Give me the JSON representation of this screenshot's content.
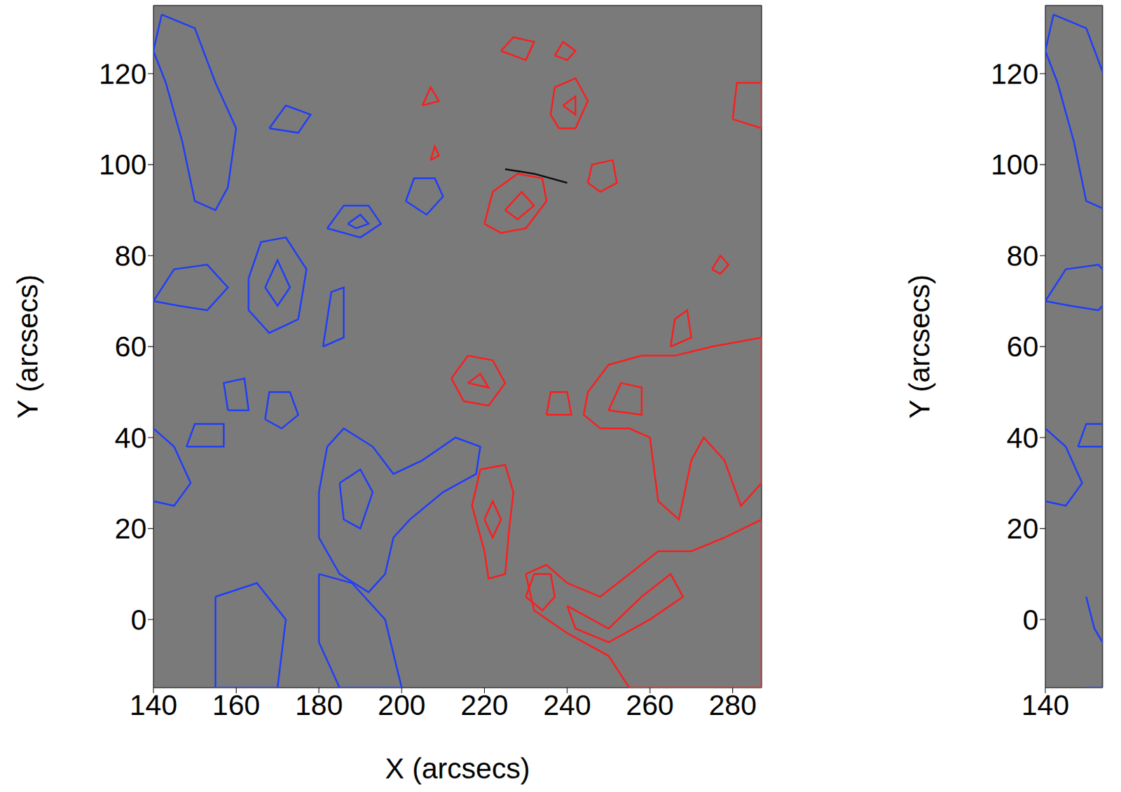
{
  "chart_data": [
    {
      "type": "contour",
      "xlabel": "X (arcsecs)",
      "ylabel": "Y (arcsecs)",
      "xlim": [
        140,
        287
      ],
      "ylim": [
        -15,
        135
      ],
      "xticks": [
        140,
        160,
        180,
        200,
        220,
        240,
        260,
        280
      ],
      "yticks": [
        0,
        20,
        40,
        60,
        80,
        100,
        120
      ],
      "series": [
        {
          "color": "#1f3dff",
          "x": [
            142,
            150,
            155,
            160,
            158,
            155,
            150,
            147,
            143,
            140,
            142
          ],
          "y": [
            133,
            130,
            118,
            108,
            95,
            90,
            92,
            105,
            118,
            125,
            133
          ]
        },
        {
          "color": "#1f3dff",
          "x": [
            168,
            172,
            178,
            175,
            168
          ],
          "y": [
            108,
            113,
            111,
            107,
            108
          ]
        },
        {
          "color": "#1f3dff",
          "x": [
            182,
            186,
            192,
            195,
            190,
            182
          ],
          "y": [
            86,
            91,
            91,
            87,
            84,
            86
          ]
        },
        {
          "color": "#1f3dff",
          "x": [
            187,
            190,
            192,
            189,
            187
          ],
          "y": [
            87,
            89,
            87,
            86,
            87
          ]
        },
        {
          "color": "#1f3dff",
          "x": [
            201,
            203,
            208,
            210,
            206,
            201
          ],
          "y": [
            92,
            97,
            97,
            93,
            89,
            92
          ]
        },
        {
          "color": "#1f3dff",
          "x": [
            140,
            145,
            153,
            158,
            153,
            146,
            140
          ],
          "y": [
            70,
            77,
            78,
            73,
            68,
            69,
            70
          ]
        },
        {
          "color": "#1f3dff",
          "x": [
            163,
            166,
            172,
            177,
            175,
            168,
            163,
            163
          ],
          "y": [
            75,
            83,
            84,
            77,
            66,
            63,
            68,
            75
          ]
        },
        {
          "color": "#1f3dff",
          "x": [
            167,
            170,
            173,
            170,
            167
          ],
          "y": [
            73,
            79,
            73,
            69,
            73
          ]
        },
        {
          "color": "#1f3dff",
          "x": [
            181,
            183,
            186,
            186,
            181
          ],
          "y": [
            60,
            72,
            73,
            62,
            60
          ]
        },
        {
          "color": "#1f3dff",
          "x": [
            158,
            157,
            162,
            163,
            158
          ],
          "y": [
            46,
            52,
            53,
            46,
            46
          ]
        },
        {
          "color": "#1f3dff",
          "x": [
            167,
            168,
            173,
            175,
            171,
            167
          ],
          "y": [
            44,
            50,
            50,
            45,
            42,
            44
          ]
        },
        {
          "color": "#1f3dff",
          "x": [
            148,
            150,
            157,
            157,
            148
          ],
          "y": [
            38,
            43,
            43,
            38,
            38
          ]
        },
        {
          "color": "#1f3dff",
          "x": [
            182,
            186,
            193,
            198,
            205,
            213,
            219,
            218,
            210,
            202,
            198,
            196,
            192,
            185,
            180,
            180,
            182
          ],
          "y": [
            38,
            42,
            38,
            32,
            35,
            40,
            38,
            32,
            28,
            22,
            18,
            10,
            6,
            10,
            18,
            28,
            38
          ]
        },
        {
          "color": "#1f3dff",
          "x": [
            185,
            190,
            193,
            190,
            186,
            185
          ],
          "y": [
            30,
            33,
            28,
            20,
            22,
            30
          ]
        },
        {
          "color": "#1f3dff",
          "x": [
            180,
            188,
            196,
            200,
            185,
            180,
            180
          ],
          "y": [
            10,
            8,
            0,
            -15,
            -15,
            -5,
            10
          ]
        },
        {
          "color": "#1f3dff",
          "x": [
            155,
            165,
            172,
            170,
            155,
            155
          ],
          "y": [
            5,
            8,
            0,
            -15,
            -15,
            5
          ]
        },
        {
          "color": "#1f3dff",
          "x": [
            140,
            145,
            149,
            145,
            140
          ],
          "y": [
            42,
            38,
            30,
            25,
            26
          ]
        },
        {
          "color": "#ff1e1e",
          "x": [
            220,
            222,
            228,
            234,
            235,
            230,
            224,
            220
          ],
          "y": [
            87,
            94,
            98,
            97,
            92,
            86,
            85,
            87
          ]
        },
        {
          "color": "#ff1e1e",
          "x": [
            225,
            229,
            232,
            228,
            225
          ],
          "y": [
            90,
            94,
            91,
            88,
            90
          ]
        },
        {
          "color": "#ff1e1e",
          "x": [
            245,
            246,
            251,
            252,
            248,
            245
          ],
          "y": [
            96,
            100,
            101,
            96,
            94,
            96
          ]
        },
        {
          "color": "#ff1e1e",
          "x": [
            236,
            237,
            242,
            245,
            242,
            238,
            236
          ],
          "y": [
            111,
            117,
            119,
            114,
            108,
            108,
            111
          ]
        },
        {
          "color": "#ff1e1e",
          "x": [
            239,
            242,
            242,
            239
          ],
          "y": [
            113,
            115,
            111,
            113
          ]
        },
        {
          "color": "#ff1e1e",
          "x": [
            224,
            227,
            232,
            230,
            224
          ],
          "y": [
            125,
            128,
            127,
            123,
            125
          ]
        },
        {
          "color": "#ff1e1e",
          "x": [
            237,
            239,
            242,
            240,
            237
          ],
          "y": [
            124,
            127,
            125,
            123,
            124
          ]
        },
        {
          "color": "#ff1e1e",
          "x": [
            205,
            207,
            209,
            205
          ],
          "y": [
            113,
            117,
            114,
            113
          ]
        },
        {
          "color": "#ff1e1e",
          "x": [
            207,
            208,
            209,
            207
          ],
          "y": [
            101,
            104,
            102,
            101
          ]
        },
        {
          "color": "#ff1e1e",
          "x": [
            280,
            281,
            287,
            287,
            280
          ],
          "y": [
            110,
            118,
            118,
            108,
            110
          ]
        },
        {
          "color": "#ff1e1e",
          "x": [
            275,
            277,
            279,
            277,
            275
          ],
          "y": [
            77,
            80,
            78,
            76,
            77
          ]
        },
        {
          "color": "#ff1e1e",
          "x": [
            265,
            266,
            269,
            270,
            265
          ],
          "y": [
            60,
            66,
            68,
            62,
            60
          ]
        },
        {
          "color": "#ff1e1e",
          "x": [
            245,
            250,
            258,
            266,
            275,
            287,
            287,
            282,
            278,
            273,
            270,
            267,
            262,
            260,
            255,
            248,
            244,
            245
          ],
          "y": [
            50,
            56,
            58,
            58,
            60,
            62,
            30,
            25,
            35,
            40,
            35,
            22,
            26,
            40,
            42,
            42,
            45,
            50
          ]
        },
        {
          "color": "#ff1e1e",
          "x": [
            235,
            236,
            240,
            241,
            235
          ],
          "y": [
            45,
            50,
            50,
            45,
            45
          ]
        },
        {
          "color": "#ff1e1e",
          "x": [
            250,
            253,
            258,
            258,
            250
          ],
          "y": [
            46,
            52,
            51,
            45,
            46
          ]
        },
        {
          "color": "#ff1e1e",
          "x": [
            212,
            216,
            222,
            225,
            221,
            215,
            212
          ],
          "y": [
            53,
            58,
            57,
            52,
            47,
            48,
            53
          ]
        },
        {
          "color": "#ff1e1e",
          "x": [
            216,
            219,
            221,
            216
          ],
          "y": [
            52,
            54,
            51,
            52
          ]
        },
        {
          "color": "#ff1e1e",
          "x": [
            219,
            225,
            227,
            226,
            225,
            221,
            220,
            217,
            219
          ],
          "y": [
            33,
            34,
            28,
            20,
            10,
            9,
            15,
            25,
            33
          ]
        },
        {
          "color": "#ff1e1e",
          "x": [
            220,
            222,
            224,
            222,
            220
          ],
          "y": [
            22,
            26,
            22,
            18,
            22
          ]
        },
        {
          "color": "#ff1e1e",
          "x": [
            230,
            235,
            240,
            248,
            255,
            262,
            270,
            278,
            287,
            287,
            255,
            250,
            240,
            232,
            230
          ],
          "y": [
            10,
            12,
            8,
            5,
            10,
            15,
            15,
            18,
            22,
            -15,
            -15,
            -8,
            -3,
            2,
            10
          ]
        },
        {
          "color": "#ff1e1e",
          "x": [
            240,
            250,
            258,
            265,
            268,
            260,
            250,
            242,
            240
          ],
          "y": [
            3,
            -2,
            5,
            10,
            5,
            0,
            -5,
            -2,
            3
          ]
        },
        {
          "color": "#ff1e1e",
          "x": [
            230,
            232,
            236,
            237,
            234,
            230
          ],
          "y": [
            5,
            10,
            10,
            5,
            2,
            5
          ]
        },
        {
          "color": "#101010",
          "x": [
            225,
            232,
            240
          ],
          "y": [
            99,
            98,
            96
          ]
        }
      ]
    },
    {
      "type": "contour",
      "ylabel": "Y (arcsecs)",
      "xlim": [
        140,
        154
      ],
      "ylim": [
        -15,
        135
      ],
      "xticks": [
        140
      ],
      "yticks": [
        0,
        20,
        40,
        60,
        80,
        100,
        120
      ],
      "series": [
        {
          "color": "#1f3dff",
          "x": [
            142,
            150,
            155,
            160,
            158,
            155,
            150,
            147,
            143,
            140,
            142
          ],
          "y": [
            133,
            130,
            118,
            108,
            95,
            90,
            92,
            105,
            118,
            125,
            133
          ]
        },
        {
          "color": "#1f3dff",
          "x": [
            140,
            145,
            153,
            158,
            153,
            146,
            140
          ],
          "y": [
            70,
            77,
            78,
            73,
            68,
            69,
            70
          ]
        },
        {
          "color": "#1f3dff",
          "x": [
            148,
            150,
            157,
            157,
            148
          ],
          "y": [
            38,
            43,
            43,
            38,
            38
          ]
        },
        {
          "color": "#1f3dff",
          "x": [
            140,
            145,
            149,
            145,
            140
          ],
          "y": [
            42,
            38,
            30,
            25,
            26
          ]
        },
        {
          "color": "#1f3dff",
          "x": [
            150,
            152,
            156,
            155,
            150
          ],
          "y": [
            5,
            -2,
            -8,
            -15,
            -15
          ]
        }
      ]
    }
  ]
}
